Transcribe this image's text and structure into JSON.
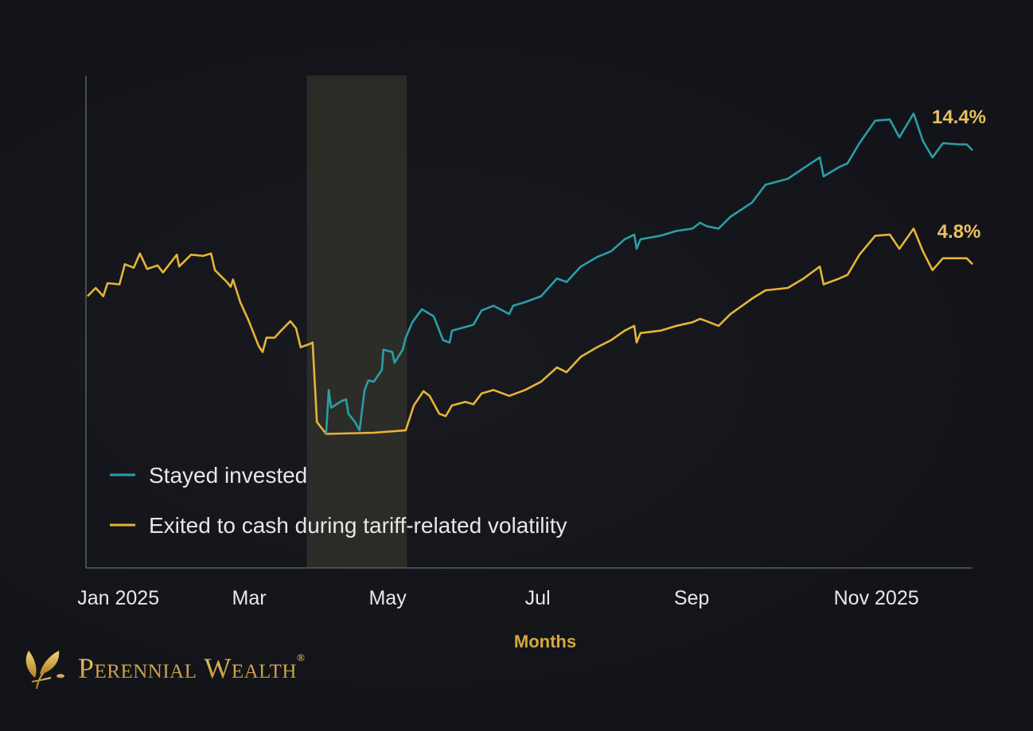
{
  "chart_data": {
    "type": "line",
    "title": "",
    "xlabel": "Months",
    "ylabel": "",
    "x_unit": "trading day index",
    "xlim": [
      0,
      230
    ],
    "ylim": [
      -20.8,
      20.7
    ],
    "grid": false,
    "x_ticks": [
      {
        "label": "Jan 2025",
        "x": 8
      },
      {
        "label": "Mar",
        "x": 42
      },
      {
        "label": "May",
        "x": 78
      },
      {
        "label": "Jul",
        "x": 117
      },
      {
        "label": "Sep",
        "x": 157
      },
      {
        "label": "Nov 2025",
        "x": 205
      }
    ],
    "highlight_range": [
      57,
      83
    ],
    "legend_position": "bottom-left",
    "series": [
      {
        "name": "Exited to cash during tariff-related volatility",
        "color": "#e6b437",
        "end_label": "4.8%",
        "points": [
          [
            0,
            2.1
          ],
          [
            2.1,
            2.8
          ],
          [
            4.1,
            2.1
          ],
          [
            5.2,
            3.2
          ],
          [
            8.3,
            3.1
          ],
          [
            9.7,
            4.8
          ],
          [
            12.0,
            4.5
          ],
          [
            13.6,
            5.7
          ],
          [
            15.5,
            4.4
          ],
          [
            18.2,
            4.7
          ],
          [
            19.6,
            4.1
          ],
          [
            23.2,
            5.6
          ],
          [
            23.8,
            4.6
          ],
          [
            26.9,
            5.6
          ],
          [
            30.0,
            5.5
          ],
          [
            32.1,
            5.7
          ],
          [
            33.1,
            4.3
          ],
          [
            36.2,
            3.3
          ],
          [
            37.2,
            2.9
          ],
          [
            37.8,
            3.5
          ],
          [
            39.7,
            1.6
          ],
          [
            41.8,
            0.1
          ],
          [
            44.5,
            -2.1
          ],
          [
            45.5,
            -2.6
          ],
          [
            46.5,
            -1.4
          ],
          [
            48.6,
            -1.4
          ],
          [
            50.0,
            -0.9
          ],
          [
            52.7,
            0.0
          ],
          [
            54.2,
            -0.6
          ],
          [
            55.4,
            -2.2
          ],
          [
            57.9,
            -1.9
          ],
          [
            58.5,
            -1.8
          ],
          [
            59.6,
            -8.5
          ],
          [
            62.0,
            -9.5
          ],
          [
            74.4,
            -9.4
          ],
          [
            82.7,
            -9.2
          ],
          [
            84.8,
            -7.1
          ],
          [
            87.3,
            -5.9
          ],
          [
            88.9,
            -6.3
          ],
          [
            91.4,
            -7.8
          ],
          [
            93.1,
            -8.0
          ],
          [
            94.7,
            -7.1
          ],
          [
            98.2,
            -6.8
          ],
          [
            100.3,
            -7.0
          ],
          [
            102.4,
            -6.1
          ],
          [
            105.5,
            -5.8
          ],
          [
            109.6,
            -6.3
          ],
          [
            113.7,
            -5.8
          ],
          [
            117.9,
            -5.1
          ],
          [
            122.0,
            -3.9
          ],
          [
            124.5,
            -4.3
          ],
          [
            128.2,
            -3.0
          ],
          [
            132.4,
            -2.2
          ],
          [
            136.1,
            -1.6
          ],
          [
            139.6,
            -0.8
          ],
          [
            142.1,
            -0.4
          ],
          [
            142.7,
            -1.8
          ],
          [
            143.7,
            -1.0
          ],
          [
            148.9,
            -0.8
          ],
          [
            153.0,
            -0.4
          ],
          [
            157.2,
            -0.1
          ],
          [
            159.2,
            0.2
          ],
          [
            160.9,
            0.0
          ],
          [
            164.0,
            -0.4
          ],
          [
            167.1,
            0.6
          ],
          [
            172.7,
            1.9
          ],
          [
            176.2,
            2.6
          ],
          [
            182.0,
            2.8
          ],
          [
            186.1,
            3.6
          ],
          [
            190.3,
            4.6
          ],
          [
            191.3,
            3.1
          ],
          [
            195.4,
            3.6
          ],
          [
            197.5,
            3.9
          ],
          [
            200.6,
            5.6
          ],
          [
            204.7,
            7.2
          ],
          [
            208.5,
            7.3
          ],
          [
            211.0,
            6.1
          ],
          [
            214.7,
            7.8
          ],
          [
            217.1,
            5.9
          ],
          [
            219.6,
            4.3
          ],
          [
            222.3,
            5.3
          ],
          [
            226.4,
            5.3
          ],
          [
            228.5,
            5.3
          ],
          [
            230,
            4.8
          ]
        ]
      },
      {
        "name": "Stayed invested",
        "color": "#2b9ea5",
        "end_label": "14.4%",
        "points": [
          [
            62.0,
            -9.5
          ],
          [
            62.7,
            -5.8
          ],
          [
            63.3,
            -7.3
          ],
          [
            66.2,
            -6.7
          ],
          [
            67.2,
            -6.6
          ],
          [
            67.8,
            -7.8
          ],
          [
            69.5,
            -8.5
          ],
          [
            70.7,
            -9.2
          ],
          [
            72.0,
            -5.8
          ],
          [
            73.0,
            -5.0
          ],
          [
            74.4,
            -5.1
          ],
          [
            76.5,
            -4.1
          ],
          [
            76.9,
            -2.4
          ],
          [
            79.2,
            -2.6
          ],
          [
            79.8,
            -3.5
          ],
          [
            81.9,
            -2.4
          ],
          [
            82.7,
            -1.4
          ],
          [
            84.4,
            -0.1
          ],
          [
            86.9,
            1.0
          ],
          [
            90.0,
            0.4
          ],
          [
            92.4,
            -1.6
          ],
          [
            94.1,
            -1.8
          ],
          [
            94.7,
            -0.8
          ],
          [
            100.3,
            -0.3
          ],
          [
            102.4,
            0.9
          ],
          [
            105.5,
            1.3
          ],
          [
            109.6,
            0.6
          ],
          [
            110.6,
            1.3
          ],
          [
            113.7,
            1.6
          ],
          [
            117.9,
            2.1
          ],
          [
            122.0,
            3.6
          ],
          [
            124.5,
            3.3
          ],
          [
            128.2,
            4.6
          ],
          [
            132.4,
            5.4
          ],
          [
            136.1,
            5.9
          ],
          [
            139.6,
            6.9
          ],
          [
            142.1,
            7.3
          ],
          [
            142.7,
            6.1
          ],
          [
            143.7,
            6.9
          ],
          [
            148.9,
            7.2
          ],
          [
            153.0,
            7.6
          ],
          [
            157.2,
            7.8
          ],
          [
            159.2,
            8.3
          ],
          [
            160.9,
            8.0
          ],
          [
            164.0,
            7.8
          ],
          [
            167.1,
            8.8
          ],
          [
            172.7,
            10.0
          ],
          [
            176.2,
            11.5
          ],
          [
            182.0,
            12.0
          ],
          [
            186.1,
            12.9
          ],
          [
            190.3,
            13.8
          ],
          [
            191.3,
            12.2
          ],
          [
            195.4,
            13.0
          ],
          [
            197.5,
            13.3
          ],
          [
            200.6,
            15.0
          ],
          [
            204.7,
            16.9
          ],
          [
            208.5,
            17.0
          ],
          [
            211.0,
            15.5
          ],
          [
            214.7,
            17.5
          ],
          [
            217.1,
            15.2
          ],
          [
            219.6,
            13.8
          ],
          [
            222.3,
            15.0
          ],
          [
            226.4,
            14.9
          ],
          [
            228.5,
            14.9
          ],
          [
            230,
            14.4
          ]
        ]
      }
    ]
  },
  "legend": {
    "items": [
      {
        "label": "Stayed invested",
        "color": "#2b9ea5"
      },
      {
        "label": "Exited to cash during tariff-related volatility",
        "color": "#e6b437"
      }
    ]
  },
  "brand": {
    "name": "Perennial Wealth",
    "registered": "®"
  }
}
